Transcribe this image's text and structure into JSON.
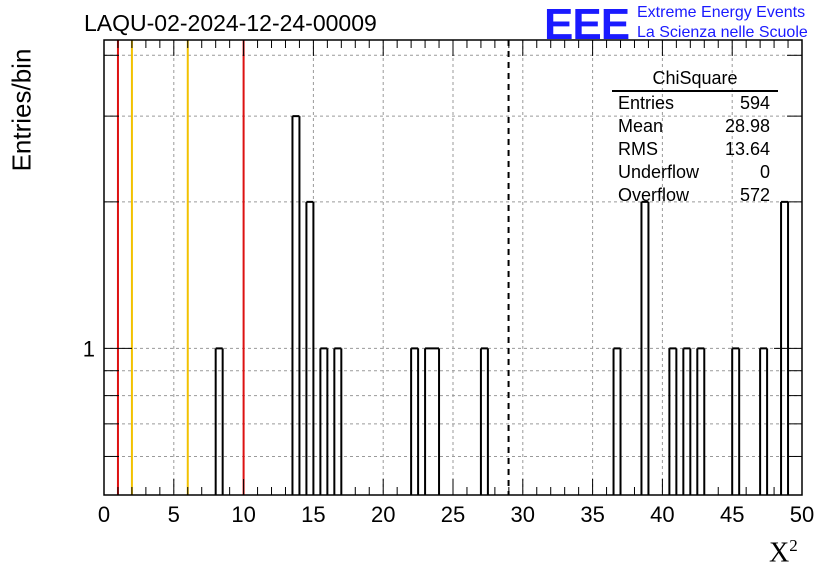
{
  "header": {
    "title": "LAQU-02-2024-12-24-00009",
    "logo_text": "EEE",
    "logo_line1": "Extreme Energy Events",
    "logo_line2": "La Scienza nelle Scuole"
  },
  "stats": {
    "title": "ChiSquare",
    "rows": [
      {
        "label": "Entries",
        "value": "594"
      },
      {
        "label": "Mean",
        "value": "28.98"
      },
      {
        "label": "RMS",
        "value": "13.64"
      },
      {
        "label": "Underflow",
        "value": "0"
      },
      {
        "label": "Overflow",
        "value": "572"
      }
    ]
  },
  "chart_data": {
    "type": "bar",
    "title": "LAQU-02-2024-12-24-00009",
    "xlabel": "X",
    "xlabel_superscript": "2",
    "ylabel": "Entries/bin",
    "xlim": [
      0,
      50
    ],
    "ylim": [
      0.5,
      4.3
    ],
    "yscale": "log",
    "bin_width": 0.5,
    "grid": true,
    "x_ticks": [
      "0",
      "5",
      "10",
      "15",
      "20",
      "25",
      "30",
      "35",
      "40",
      "45",
      "50"
    ],
    "y_tick_labels": [
      {
        "value": 1,
        "label": "1"
      }
    ],
    "bins": [
      {
        "x": 8.0,
        "count": 1
      },
      {
        "x": 13.5,
        "count": 3
      },
      {
        "x": 14.5,
        "count": 2
      },
      {
        "x": 15.5,
        "count": 1
      },
      {
        "x": 16.5,
        "count": 1
      },
      {
        "x": 22.0,
        "count": 1
      },
      {
        "x": 23.0,
        "count": 1
      },
      {
        "x": 23.5,
        "count": 1
      },
      {
        "x": 27.0,
        "count": 1
      },
      {
        "x": 36.5,
        "count": 1
      },
      {
        "x": 38.5,
        "count": 2
      },
      {
        "x": 40.5,
        "count": 1
      },
      {
        "x": 41.5,
        "count": 1
      },
      {
        "x": 42.5,
        "count": 1
      },
      {
        "x": 45.0,
        "count": 1
      },
      {
        "x": 47.0,
        "count": 1
      },
      {
        "x": 48.5,
        "count": 2
      }
    ],
    "vertical_lines": [
      {
        "x": 1,
        "color": "#dd1111",
        "style": "solid"
      },
      {
        "x": 2,
        "color": "#f2c200",
        "style": "solid"
      },
      {
        "x": 6,
        "color": "#f2c200",
        "style": "solid"
      },
      {
        "x": 10,
        "color": "#dd1111",
        "style": "solid"
      },
      {
        "x": 28.98,
        "color": "#000000",
        "style": "dashed"
      }
    ]
  }
}
